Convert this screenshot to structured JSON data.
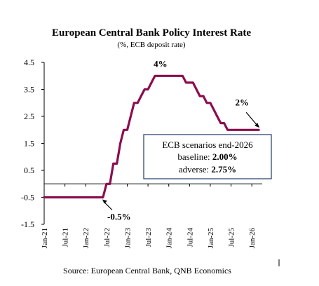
{
  "chart_data": {
    "type": "line",
    "title": "European Central Bank Policy Interest Rate",
    "subtitle": "(%, ECB deposit rate)",
    "xlabel": "",
    "ylabel": "",
    "ylim": [
      -1.5,
      4.5
    ],
    "yticks": [
      "4.5",
      "3.5",
      "2.5",
      "1.5",
      "0.5",
      "-0.5",
      "-1.5"
    ],
    "ytick_values": [
      4.5,
      3.5,
      2.5,
      1.5,
      0.5,
      -0.5,
      -1.5
    ],
    "xticks": [
      "Jan-21",
      "Jul-21",
      "Jan-22",
      "Jul-22",
      "Jan-23",
      "Jul-23",
      "Jan-24",
      "Jul-24",
      "Jan-25",
      "Jul-25",
      "Jan-26"
    ],
    "grid": false,
    "series_color": "#8B0D4F",
    "series": [
      {
        "x": [
          "2021-01",
          "2021-04",
          "2021-07",
          "2021-10",
          "2022-01",
          "2022-04",
          "2022-06",
          "2022-07",
          "2022-08",
          "2022-09",
          "2022-10",
          "2022-11",
          "2022-12",
          "2023-01",
          "2023-02",
          "2023-03",
          "2023-04",
          "2023-05",
          "2023-06",
          "2023-07",
          "2023-08",
          "2023-09",
          "2023-10",
          "2024-01",
          "2024-05",
          "2024-06",
          "2024-08",
          "2024-09",
          "2024-10",
          "2024-11",
          "2024-12",
          "2025-01",
          "2025-02",
          "2025-03",
          "2025-04",
          "2025-05",
          "2025-06",
          "2025-09",
          "2026-01",
          "2026-02",
          "2026-03"
        ],
        "values": [
          -0.5,
          -0.5,
          -0.5,
          -0.5,
          -0.5,
          -0.5,
          -0.5,
          0,
          0,
          0.75,
          0.75,
          1.5,
          2,
          2,
          2.5,
          3,
          3,
          3.25,
          3.5,
          3.5,
          3.75,
          4,
          4,
          4,
          4,
          3.75,
          3.75,
          3.5,
          3.25,
          3.25,
          3,
          3,
          2.75,
          2.5,
          2.25,
          2.25,
          2,
          2,
          2,
          2,
          2
        ]
      }
    ],
    "annotations": [
      {
        "text": "4%",
        "x": "2023-11",
        "y": 4
      },
      {
        "text": "2%",
        "x": "2026-01",
        "y": 2
      },
      {
        "text": "-0.5%",
        "x": "2022-07",
        "y": -0.5
      }
    ],
    "scenario_box": {
      "title": "ECB scenarios end-2026",
      "baseline_label": "baseline: ",
      "baseline_value": "2.00%",
      "adverse_label": "adverse: ",
      "adverse_value": "2.75%"
    },
    "source": "Source: European Central Bank, QNB Economics"
  }
}
